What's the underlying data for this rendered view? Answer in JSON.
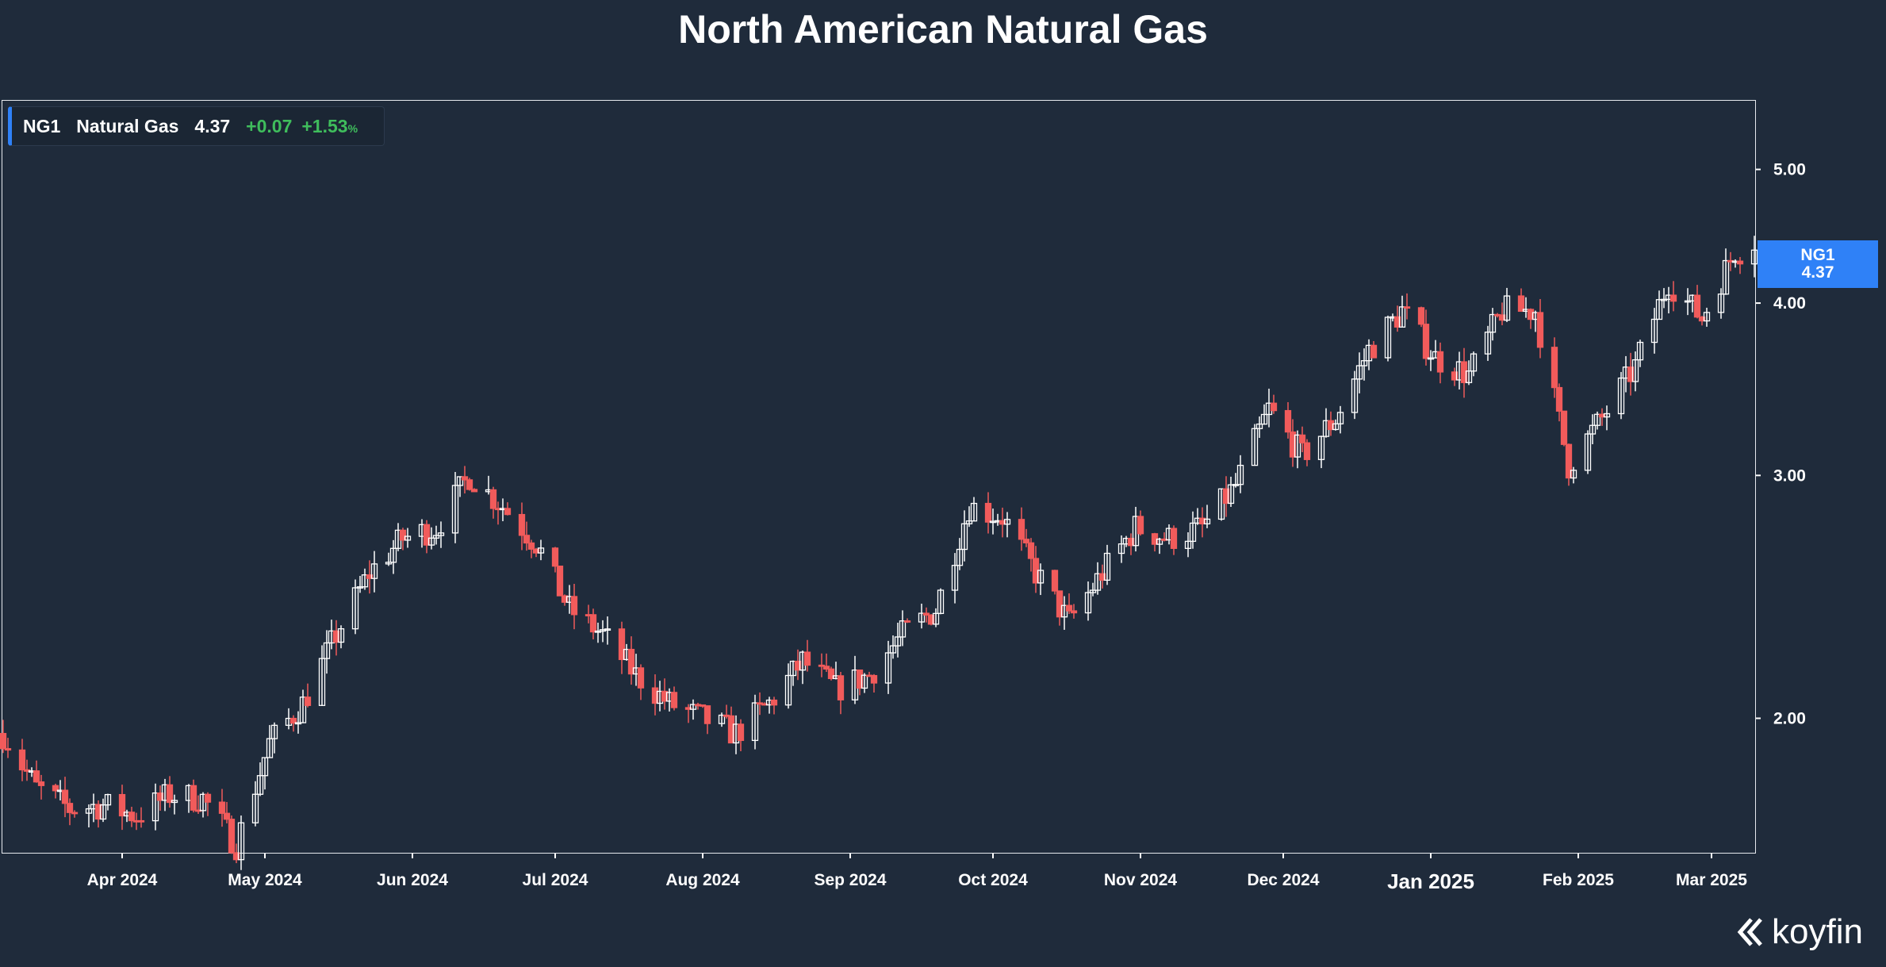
{
  "title": "North American Natural Gas",
  "legend": {
    "symbol": "NG1",
    "name": "Natural Gas",
    "price": "4.37",
    "change": "+0.07",
    "change_pct": "+1.53",
    "pct_sign": "%"
  },
  "price_tag": {
    "symbol": "NG1",
    "price": "4.37"
  },
  "brand": "koyfin",
  "colors": {
    "background": "#1f2b3b",
    "up": "#ffffff",
    "down": "#f15b5b",
    "accent": "#2f81f7",
    "positive": "#3fbd5c"
  },
  "chart_data": {
    "type": "candlestick",
    "title": "North American Natural Gas",
    "y_scale": "log",
    "y_ticks": [
      "2.00",
      "3.00",
      "4.00",
      "5.00"
    ],
    "ylim": [
      1.6,
      5.6
    ],
    "x_ticks": [
      {
        "date": "2024-04-01",
        "label": "Apr 2024"
      },
      {
        "date": "2024-05-01",
        "label": "May 2024"
      },
      {
        "date": "2024-06-01",
        "label": "Jun 2024"
      },
      {
        "date": "2024-07-01",
        "label": "Jul 2024"
      },
      {
        "date": "2024-08-01",
        "label": "Aug 2024"
      },
      {
        "date": "2024-09-01",
        "label": "Sep 2024"
      },
      {
        "date": "2024-10-01",
        "label": "Oct 2024"
      },
      {
        "date": "2024-11-01",
        "label": "Nov 2024"
      },
      {
        "date": "2024-12-01",
        "label": "Dec 2024"
      },
      {
        "date": "2025-01-01",
        "label": "Jan 2025",
        "emphasis": true
      },
      {
        "date": "2025-02-01",
        "label": "Feb 2025"
      },
      {
        "date": "2025-03-01",
        "label": "Mar 2025"
      }
    ],
    "xlim": [
      "2024-03-07",
      "2025-03-10"
    ],
    "grid": false,
    "close_series": [
      [
        "2024-03-07",
        1.95
      ],
      [
        "2024-03-14",
        1.78
      ],
      [
        "2024-03-21",
        1.72
      ],
      [
        "2024-03-28",
        1.73
      ],
      [
        "2024-04-04",
        1.7
      ],
      [
        "2024-04-11",
        1.76
      ],
      [
        "2024-04-18",
        1.75
      ],
      [
        "2024-04-25",
        1.62
      ],
      [
        "2024-05-02",
        1.92
      ],
      [
        "2024-05-09",
        2.05
      ],
      [
        "2024-05-16",
        2.3
      ],
      [
        "2024-05-23",
        2.55
      ],
      [
        "2024-05-30",
        2.7
      ],
      [
        "2024-06-06",
        2.75
      ],
      [
        "2024-06-13",
        3.0
      ],
      [
        "2024-06-20",
        2.85
      ],
      [
        "2024-06-27",
        2.68
      ],
      [
        "2024-07-04",
        2.4
      ],
      [
        "2024-07-11",
        2.3
      ],
      [
        "2024-07-18",
        2.15
      ],
      [
        "2024-07-25",
        2.05
      ],
      [
        "2024-08-01",
        2.0
      ],
      [
        "2024-08-08",
        1.95
      ],
      [
        "2024-08-15",
        2.05
      ],
      [
        "2024-08-22",
        2.2
      ],
      [
        "2024-08-29",
        2.1
      ],
      [
        "2024-09-05",
        2.15
      ],
      [
        "2024-09-12",
        2.3
      ],
      [
        "2024-09-19",
        2.4
      ],
      [
        "2024-09-26",
        2.85
      ],
      [
        "2024-10-03",
        2.8
      ],
      [
        "2024-10-10",
        2.55
      ],
      [
        "2024-10-17",
        2.35
      ],
      [
        "2024-10-24",
        2.55
      ],
      [
        "2024-10-31",
        2.75
      ],
      [
        "2024-11-07",
        2.7
      ],
      [
        "2024-11-14",
        2.75
      ],
      [
        "2024-11-21",
        2.95
      ],
      [
        "2024-11-28",
        3.35
      ],
      [
        "2024-12-05",
        3.1
      ],
      [
        "2024-12-12",
        3.3
      ],
      [
        "2024-12-19",
        3.7
      ],
      [
        "2024-12-26",
        3.95
      ],
      [
        "2025-01-02",
        3.65
      ],
      [
        "2025-01-09",
        3.55
      ],
      [
        "2025-01-16",
        3.95
      ],
      [
        "2025-01-23",
        3.95
      ],
      [
        "2025-01-30",
        3.05
      ],
      [
        "2025-02-06",
        3.3
      ],
      [
        "2025-02-13",
        3.6
      ],
      [
        "2025-02-20",
        4.15
      ],
      [
        "2025-02-27",
        3.9
      ],
      [
        "2025-03-06",
        4.37
      ]
    ]
  }
}
